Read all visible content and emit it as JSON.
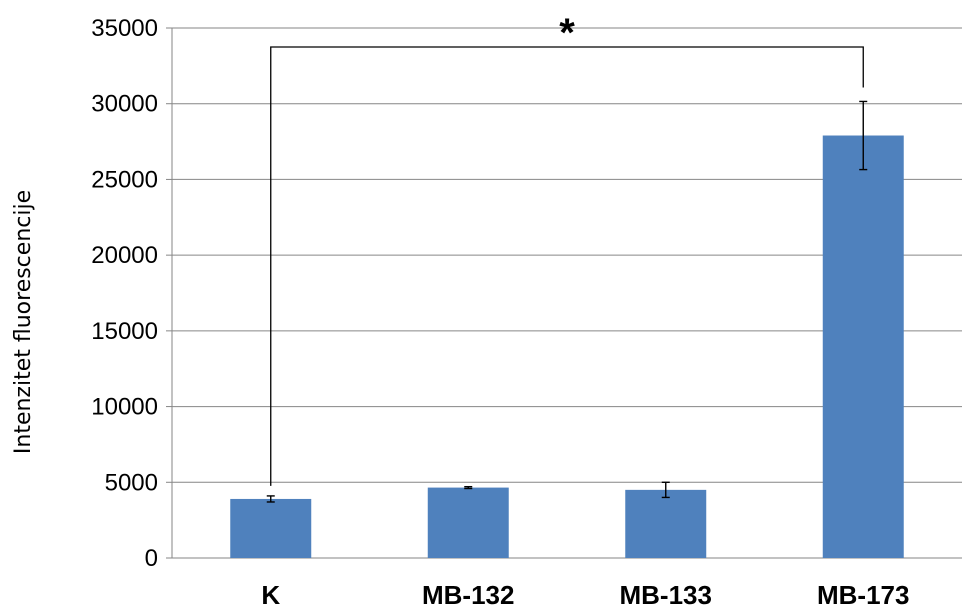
{
  "chart_data": {
    "type": "bar",
    "title": "",
    "xlabel": "",
    "ylabel": "Intenzitet fluorescencije",
    "categories": [
      "K",
      "MB-132",
      "MB-133",
      "MB-173"
    ],
    "values": [
      3900,
      4650,
      4500,
      27900
    ],
    "errors": [
      200,
      60,
      500,
      2250
    ],
    "ylim": [
      0,
      35000
    ],
    "yticks": [
      0,
      5000,
      10000,
      15000,
      20000,
      25000,
      30000,
      35000
    ],
    "ytick_labels": [
      "0",
      "5000",
      "10000",
      "15000",
      "20000",
      "25000",
      "30000",
      "35000"
    ],
    "grid": true,
    "legend": "none",
    "bar_color": "#4F81BD",
    "annotation": {
      "text": "*",
      "from_category": "K",
      "to_category": "MB-173"
    }
  }
}
